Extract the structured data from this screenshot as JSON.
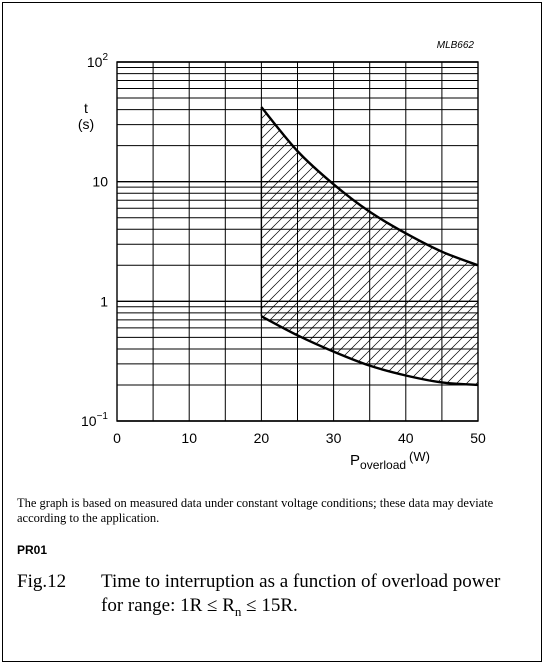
{
  "chart_data": {
    "type": "area",
    "code": "MLB662",
    "ylabel": "t",
    "ylabel_unit": "(s)",
    "xlabel_main": "P",
    "xlabel_sub": "overload",
    "xlabel_unit": "(W)",
    "xlim": [
      0,
      50
    ],
    "ylim": [
      0.1,
      100
    ],
    "yscale": "log",
    "x_ticks": [
      "0",
      "10",
      "20",
      "30",
      "40",
      "50"
    ],
    "x_tick_values": [
      0,
      10,
      20,
      30,
      40,
      50
    ],
    "y_ticks": [
      {
        "value": 0.1,
        "base": "10",
        "exp": "−1"
      },
      {
        "value": 1,
        "base": "1",
        "exp": ""
      },
      {
        "value": 10,
        "base": "10",
        "exp": ""
      },
      {
        "value": 100,
        "base": "10",
        "exp": "2"
      }
    ],
    "grid": true,
    "series": [
      {
        "role": "upper boundary",
        "x": [
          20,
          25,
          30,
          35,
          40,
          45,
          50
        ],
        "y": [
          42,
          18,
          9.5,
          5.6,
          3.7,
          2.6,
          2.0
        ]
      },
      {
        "role": "lower boundary",
        "x": [
          20,
          25,
          30,
          35,
          40,
          45,
          50
        ],
        "y": [
          0.75,
          0.52,
          0.38,
          0.29,
          0.24,
          0.21,
          0.2
        ]
      }
    ]
  },
  "note": "The graph is based on measured data under constant voltage conditions; these data may deviate according to the application.",
  "product_code": "PR01",
  "caption": {
    "number": "Fig.12",
    "text": "Time to interruption as a function of overload power for range: 1R ≤ R",
    "subscript": "n",
    "text_end": " ≤ 15R."
  }
}
